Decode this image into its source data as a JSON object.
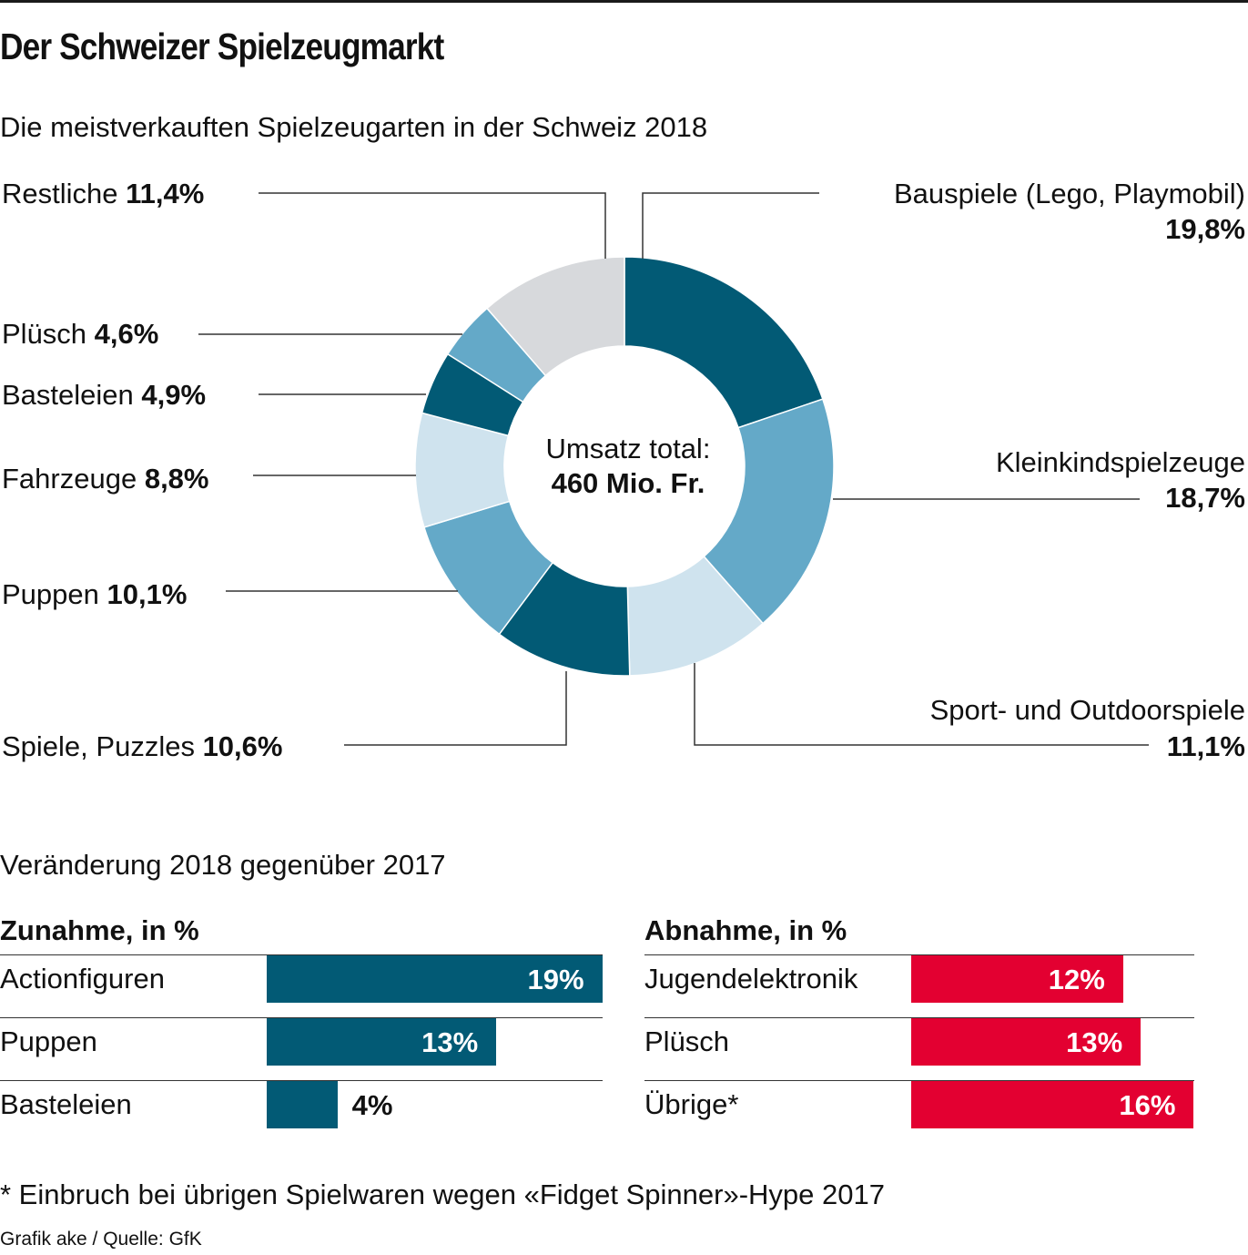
{
  "title": "Der Schweizer Spielzeugmarkt",
  "subtitle": "Die meistverkauften Spielzeugarten in der Schweiz 2018",
  "chart_data": [
    {
      "type": "pie",
      "variant": "donut",
      "title": "Die meistverkauften Spielzeugarten in der Schweiz 2018",
      "center_label": "Umsatz total:",
      "center_value": "460 Mio. Fr.",
      "slices": [
        {
          "name": "Bauspiele (Lego, Playmobil)",
          "label": "19,8%",
          "value": 19.8,
          "color": "#025a75"
        },
        {
          "name": "Kleinkindspielzeuge",
          "label": "18,7%",
          "value": 18.7,
          "color": "#64a9c8"
        },
        {
          "name": "Sport- und Outdoorspiele",
          "label": "11,1%",
          "value": 11.1,
          "color": "#cfe3ee"
        },
        {
          "name": "Spiele, Puzzles",
          "label": "10,6%",
          "value": 10.6,
          "color": "#025a75"
        },
        {
          "name": "Puppen",
          "label": "10,1%",
          "value": 10.1,
          "color": "#64a9c8"
        },
        {
          "name": "Fahrzeuge",
          "label": "8,8%",
          "value": 8.8,
          "color": "#cfe3ee"
        },
        {
          "name": "Basteleien",
          "label": "4,9%",
          "value": 4.9,
          "color": "#025a75"
        },
        {
          "name": "Plüsch",
          "label": "4,6%",
          "value": 4.6,
          "color": "#64a9c8"
        },
        {
          "name": "Restliche",
          "label": "11,4%",
          "value": 11.4,
          "color": "#d7d9dc"
        }
      ]
    },
    {
      "type": "bar",
      "orientation": "horizontal",
      "title": "Zunahme, in %",
      "categories": [
        "Actionfiguren",
        "Puppen",
        "Basteleien"
      ],
      "values": [
        19,
        13,
        4
      ],
      "labels": [
        "19%",
        "13%",
        "4%"
      ],
      "color": "#025a75"
    },
    {
      "type": "bar",
      "orientation": "horizontal",
      "title": "Abnahme, in %",
      "categories": [
        "Jugendelektronik",
        "Plüsch",
        "Übrige*"
      ],
      "values": [
        12,
        13,
        16
      ],
      "labels": [
        "12%",
        "13%",
        "16%"
      ],
      "color": "#e30031"
    }
  ],
  "section_title": "Veränderung 2018 gegenüber 2017",
  "footnote": "* Einbruch bei übrigen Spielwaren wegen «Fidget Spinner»-Hype 2017",
  "credit": "Grafik ake / Quelle: GfK"
}
